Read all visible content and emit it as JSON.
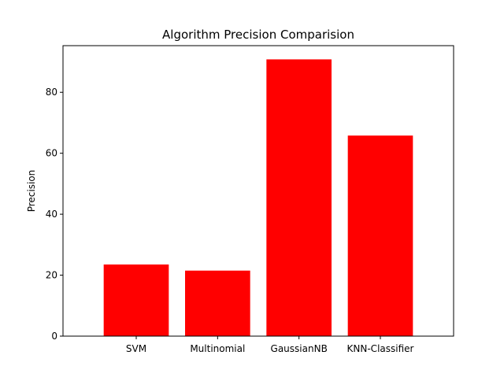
{
  "chart_data": {
    "type": "bar",
    "title": "Algorithm Precision Comparision",
    "xlabel": "",
    "ylabel": "Precision",
    "categories": [
      "SVM",
      "Multinomial",
      "GaussianNB",
      "KNN-Classifier"
    ],
    "values": [
      23.5,
      21.5,
      90.8,
      65.8
    ],
    "ylim": [
      0,
      95.3
    ],
    "yticks": [
      0,
      20,
      40,
      60,
      80
    ],
    "ytick_labels": [
      "0",
      "20",
      "40",
      "60",
      "80"
    ],
    "bar_color": "#ff0000",
    "grid": false,
    "legend": "none"
  }
}
